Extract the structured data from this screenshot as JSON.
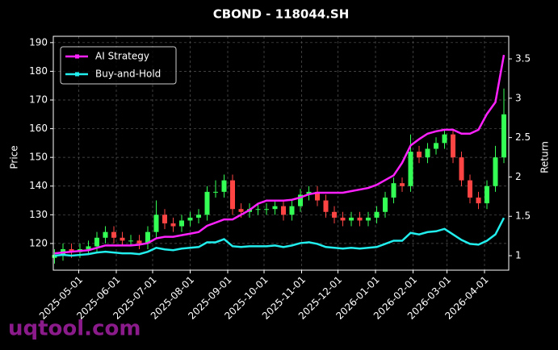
{
  "chart_data": {
    "type": "candlestick",
    "title": "CBOND - 118044.SH",
    "ylabel": "Price",
    "y2label": "Return",
    "watermark": "uqtool.com",
    "legend": "upper left",
    "grid": true,
    "up_color": "#33ff55",
    "down_color": "#ff4444",
    "xlim": [
      "2025-04-10",
      "2026-04-21"
    ],
    "xticks": [
      "2025-05-01",
      "2025-06-01",
      "2025-07-01",
      "2025-08-01",
      "2025-09-01",
      "2025-10-01",
      "2025-11-01",
      "2025-12-01",
      "2026-01-01",
      "2026-02-01",
      "2026-03-01",
      "2026-04-01"
    ],
    "ylim": [
      110.7,
      192.2
    ],
    "yticks": [
      120,
      130,
      140,
      150,
      160,
      170,
      180,
      190
    ],
    "y2lim": [
      0.816,
      3.787
    ],
    "y2ticks": [
      1.0,
      1.5,
      2.0,
      2.5,
      3.0,
      3.5
    ],
    "x": [
      "2025-04-11",
      "2025-04-18",
      "2025-04-25",
      "2025-05-02",
      "2025-05-09",
      "2025-05-16",
      "2025-05-23",
      "2025-05-30",
      "2025-06-06",
      "2025-06-13",
      "2025-06-20",
      "2025-06-27",
      "2025-07-04",
      "2025-07-11",
      "2025-07-18",
      "2025-07-25",
      "2025-08-01",
      "2025-08-08",
      "2025-08-15",
      "2025-08-22",
      "2025-08-29",
      "2025-09-05",
      "2025-09-12",
      "2025-09-19",
      "2025-09-26",
      "2025-10-03",
      "2025-10-10",
      "2025-10-17",
      "2025-10-24",
      "2025-10-31",
      "2025-11-07",
      "2025-11-14",
      "2025-11-21",
      "2025-11-28",
      "2025-12-05",
      "2025-12-12",
      "2025-12-19",
      "2025-12-26",
      "2026-01-02",
      "2026-01-09",
      "2026-01-16",
      "2026-01-23",
      "2026-01-30",
      "2026-02-06",
      "2026-02-13",
      "2026-02-20",
      "2026-02-27",
      "2026-03-06",
      "2026-03-13",
      "2026-03-20",
      "2026-03-27",
      "2026-04-03",
      "2026-04-10",
      "2026-04-17"
    ],
    "open": [
      115,
      116,
      118,
      117,
      118,
      119,
      122,
      124,
      122,
      121,
      121,
      120,
      124,
      130,
      127,
      126,
      128,
      129,
      130,
      138,
      138,
      142,
      132,
      131,
      132,
      132,
      132,
      133,
      130,
      133,
      137,
      138,
      135,
      131,
      129,
      128,
      129,
      128,
      129,
      131,
      136,
      141,
      140,
      152,
      150,
      153,
      155,
      158,
      150,
      142,
      136,
      134,
      140,
      150
    ],
    "high": [
      118,
      120,
      120,
      120,
      121,
      124,
      126,
      126,
      124,
      123,
      123,
      126,
      135,
      132,
      129,
      130,
      131,
      132,
      140,
      142,
      144,
      144,
      134,
      134,
      134,
      134,
      135,
      135,
      135,
      139,
      140,
      140,
      137,
      133,
      131,
      131,
      131,
      131,
      133,
      138,
      143,
      143,
      158,
      154,
      155,
      157,
      160,
      160,
      152,
      144,
      138,
      142,
      154,
      174
    ],
    "low": [
      113,
      114,
      115,
      115,
      116,
      117,
      120,
      120,
      119,
      119,
      118,
      118,
      122,
      125,
      124,
      124,
      126,
      127,
      128,
      136,
      136,
      130,
      129,
      129,
      130,
      130,
      130,
      128,
      128,
      131,
      135,
      133,
      129,
      127,
      126,
      126,
      126,
      126,
      127,
      129,
      134,
      138,
      138,
      148,
      148,
      151,
      153,
      148,
      140,
      134,
      132,
      132,
      138,
      148
    ],
    "close": [
      116,
      118,
      117,
      118,
      119,
      122,
      124,
      122,
      121,
      121,
      120,
      124,
      130,
      127,
      126,
      128,
      129,
      130,
      138,
      138,
      142,
      132,
      131,
      132,
      132,
      132,
      133,
      130,
      133,
      137,
      138,
      135,
      131,
      129,
      128,
      129,
      128,
      129,
      131,
      136,
      141,
      140,
      152,
      150,
      153,
      155,
      158,
      150,
      142,
      136,
      134,
      140,
      150,
      165
    ],
    "series": [
      {
        "name": "AI Strategy",
        "color": "#ff22ff",
        "axis": "y2",
        "values": [
          1.03,
          1.04,
          1.05,
          1.06,
          1.07,
          1.1,
          1.13,
          1.13,
          1.13,
          1.13,
          1.14,
          1.16,
          1.22,
          1.24,
          1.24,
          1.26,
          1.28,
          1.3,
          1.38,
          1.42,
          1.46,
          1.46,
          1.52,
          1.58,
          1.66,
          1.7,
          1.7,
          1.7,
          1.71,
          1.74,
          1.78,
          1.8,
          1.8,
          1.8,
          1.8,
          1.82,
          1.84,
          1.86,
          1.9,
          1.96,
          2.02,
          2.18,
          2.4,
          2.48,
          2.55,
          2.58,
          2.6,
          2.6,
          2.55,
          2.55,
          2.6,
          2.8,
          2.95,
          3.55
        ]
      },
      {
        "name": "Buy-and-Hold",
        "color": "#22eeee",
        "axis": "y2",
        "values": [
          1.0,
          1.01,
          1.0,
          1.01,
          1.02,
          1.04,
          1.05,
          1.04,
          1.03,
          1.03,
          1.02,
          1.05,
          1.1,
          1.08,
          1.07,
          1.09,
          1.1,
          1.11,
          1.17,
          1.17,
          1.21,
          1.12,
          1.11,
          1.12,
          1.12,
          1.12,
          1.13,
          1.11,
          1.13,
          1.16,
          1.17,
          1.15,
          1.11,
          1.1,
          1.09,
          1.1,
          1.09,
          1.1,
          1.11,
          1.15,
          1.19,
          1.19,
          1.29,
          1.27,
          1.3,
          1.31,
          1.34,
          1.27,
          1.2,
          1.15,
          1.14,
          1.19,
          1.27,
          1.48
        ]
      }
    ]
  }
}
